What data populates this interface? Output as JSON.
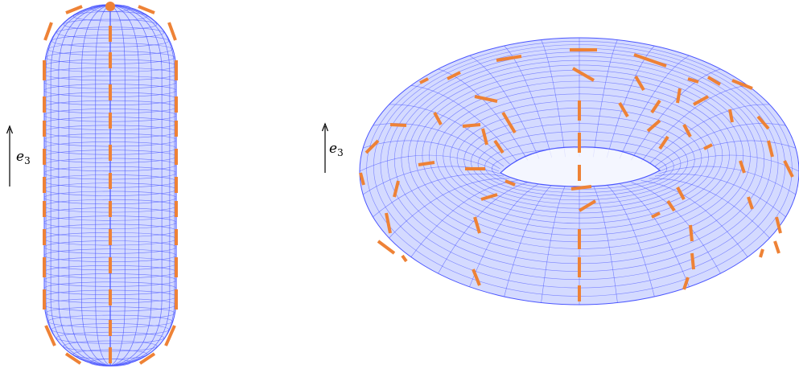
{
  "figure": {
    "colors": {
      "surface_fill": "#cfd6ff",
      "mesh_line": "#4a55ff",
      "director": "#ee8236",
      "arrow": "#000000"
    },
    "left_panel": {
      "shape": "spherocylinder",
      "axis_label": {
        "symbol": "e",
        "subscript": "3"
      },
      "mesh": {
        "meridians": 14,
        "parallels": 44
      }
    },
    "right_panel": {
      "shape": "torus",
      "axis_label": {
        "symbol": "e",
        "subscript": "3"
      },
      "mesh": {
        "meridians": 36,
        "parallels": 20
      }
    }
  }
}
